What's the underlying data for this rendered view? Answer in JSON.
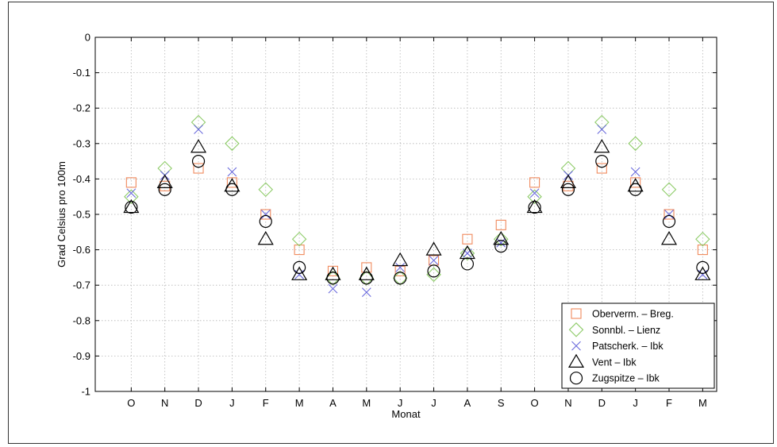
{
  "chart_data": {
    "type": "scatter",
    "xlabel": "Monat",
    "ylabel": "Grad Celsius pro 100m",
    "categories": [
      "O",
      "N",
      "D",
      "J",
      "F",
      "M",
      "A",
      "M",
      "J",
      "J",
      "A",
      "S",
      "O",
      "N",
      "D",
      "J",
      "F",
      "M"
    ],
    "ylim": [
      -1,
      0
    ],
    "yticks": [
      0,
      -0.1,
      -0.2,
      -0.3,
      -0.4,
      -0.5,
      -0.6,
      -0.7,
      -0.8,
      -0.9,
      -1
    ],
    "ytick_labels": [
      "0",
      "-0.1",
      "-0.2",
      "-0.3",
      "-0.4",
      "-0.5",
      "-0.6",
      "-0.7",
      "-0.8",
      "-0.9",
      "-1"
    ],
    "grid": true,
    "legend_position": "bottom-right",
    "series": [
      {
        "name": "Oberverm. – Breg.",
        "marker": "square",
        "color": "#f08a5d",
        "values": [
          -0.41,
          -0.42,
          -0.37,
          -0.41,
          -0.5,
          -0.6,
          -0.66,
          -0.65,
          -0.66,
          -0.63,
          -0.57,
          -0.53,
          -0.41,
          -0.42,
          -0.37,
          -0.41,
          -0.5,
          -0.6
        ]
      },
      {
        "name": "Sonnbl. – Lienz",
        "marker": "diamond",
        "color": "#8fcc6a",
        "values": [
          -0.45,
          -0.37,
          -0.24,
          -0.3,
          -0.43,
          -0.57,
          -0.68,
          -0.68,
          -0.68,
          -0.67,
          -0.61,
          -0.57,
          -0.45,
          -0.37,
          -0.24,
          -0.3,
          -0.43,
          -0.57
        ]
      },
      {
        "name": "Patscherk. – Ibk",
        "marker": "x",
        "color": "#6a6adc",
        "values": [
          -0.44,
          -0.39,
          -0.26,
          -0.38,
          -0.5,
          -0.67,
          -0.71,
          -0.72,
          -0.65,
          -0.63,
          -0.61,
          -0.58,
          -0.44,
          -0.39,
          -0.26,
          -0.38,
          -0.5,
          -0.67
        ]
      },
      {
        "name": "Vent – Ibk",
        "marker": "triangle",
        "color": "#000000",
        "values": [
          -0.48,
          -0.41,
          -0.31,
          -0.42,
          -0.57,
          -0.67,
          -0.67,
          -0.67,
          -0.63,
          -0.6,
          -0.61,
          -0.57,
          -0.48,
          -0.41,
          -0.31,
          -0.42,
          -0.57,
          -0.67
        ]
      },
      {
        "name": "Zugspitze – Ibk",
        "marker": "circle",
        "color": "#000000",
        "values": [
          -0.48,
          -0.43,
          -0.35,
          -0.43,
          -0.52,
          -0.65,
          -0.68,
          -0.68,
          -0.68,
          -0.66,
          -0.64,
          -0.59,
          -0.48,
          -0.43,
          -0.35,
          -0.43,
          -0.52,
          -0.65
        ]
      }
    ]
  }
}
